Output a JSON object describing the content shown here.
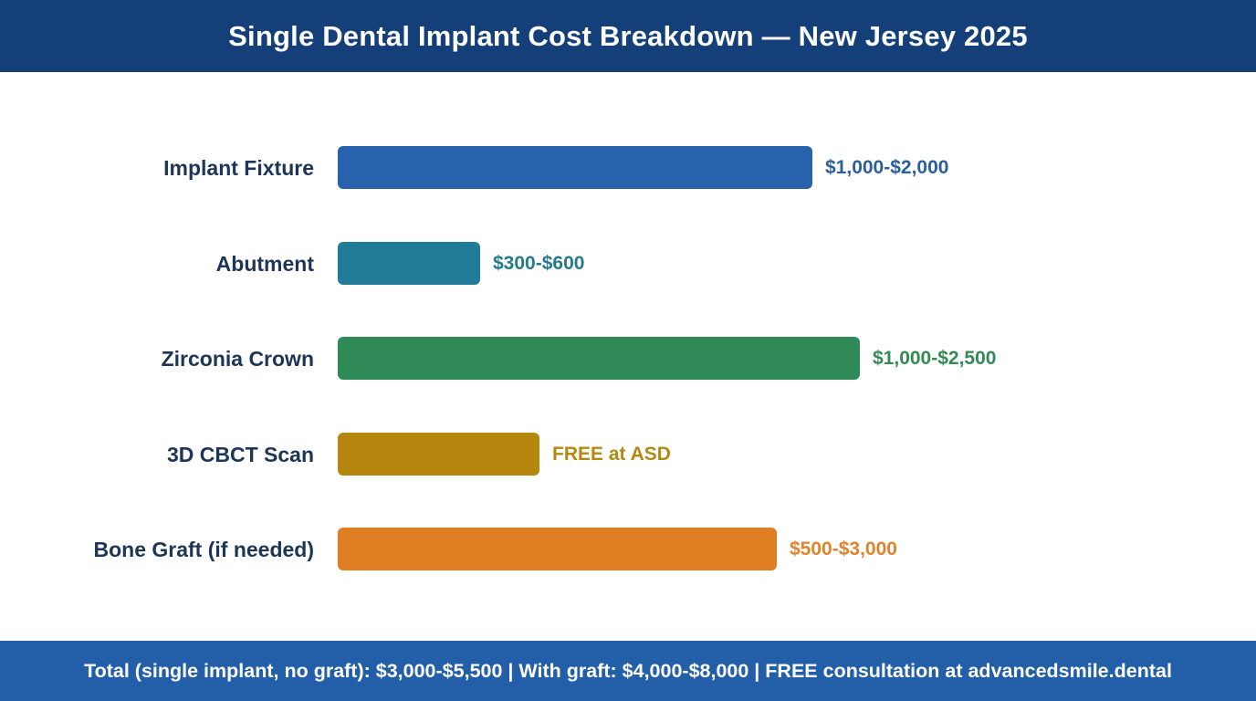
{
  "header": {
    "title": "Single Dental Implant Cost Breakdown — New Jersey 2025"
  },
  "chart_data": {
    "type": "bar",
    "orientation": "horizontal",
    "title": "Single Dental Implant Cost Breakdown — New Jersey 2025",
    "categories": [
      "Implant Fixture",
      "Abutment",
      "Zirconia Crown",
      "3D CBCT Scan",
      "Bone Graft (if needed)"
    ],
    "value_labels": [
      "$1,000-$2,000",
      "$300-$600",
      "$1,000-$2,500",
      "FREE at ASD",
      "$500-$3,000"
    ],
    "values": [
      2000,
      600,
      2200,
      850,
      1850
    ],
    "colors": [
      "#2862ad",
      "#217c99",
      "#2f8a58",
      "#b5870e",
      "#e07e24"
    ],
    "label_colors": [
      "#2b5f99",
      "#237b8c",
      "#338a55",
      "#b48912",
      "#e0842c"
    ],
    "xlim": [
      0,
      2500
    ],
    "grid": false,
    "legend": "none"
  },
  "footer": {
    "text": "Total (single implant, no graft): $3,000-$5,500 | With graft: $4,000-$8,000 | FREE consultation at advancedsmile.dental"
  }
}
